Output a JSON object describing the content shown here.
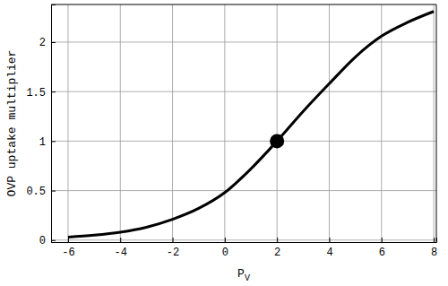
{
  "chart_data": {
    "type": "line",
    "x_label": "PV",
    "y_label": "OVP uptake multiplier",
    "xlim": [
      -6.65,
      8.1
    ],
    "ylim": [
      -0.02,
      2.38
    ],
    "xticks": [
      -6,
      -4,
      -2,
      0,
      2,
      4,
      6,
      8
    ],
    "yticks": [
      0,
      0.5,
      1,
      1.5,
      2
    ],
    "grid": true,
    "series": [
      {
        "type": "line",
        "color": "#000000",
        "line_style": "solid",
        "x": [
          -6,
          -5,
          -4,
          -3,
          -2,
          -1,
          0,
          1,
          2,
          3,
          4,
          5,
          6,
          7,
          8
        ],
        "values": [
          0.03,
          0.05,
          0.08,
          0.13,
          0.21,
          0.32,
          0.48,
          0.72,
          1.0,
          1.3,
          1.58,
          1.85,
          2.06,
          2.2,
          2.31
        ]
      },
      {
        "type": "scatter",
        "color": "#000000",
        "marker": "circle",
        "x": [
          2
        ],
        "values": [
          1.0
        ]
      }
    ]
  }
}
